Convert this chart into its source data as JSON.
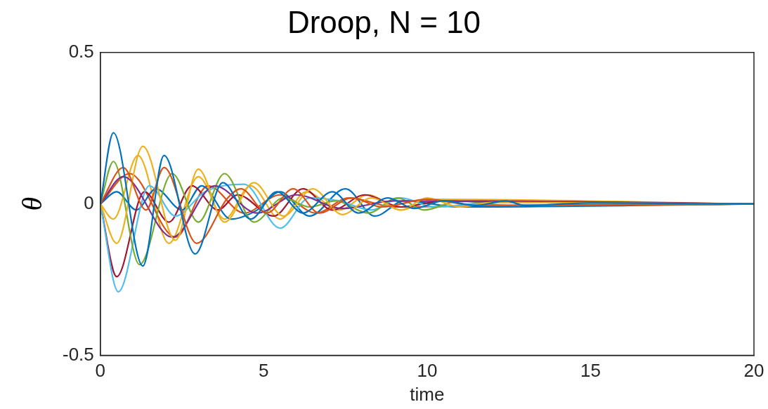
{
  "chart_data": {
    "type": "line",
    "title": "Droop, N = 10",
    "xlabel": "time",
    "ylabel": "θ",
    "xlim": [
      0,
      20
    ],
    "xticks": [
      0,
      5,
      10,
      15,
      20
    ],
    "ylim": [
      -0.5,
      0.5
    ],
    "yticks": [
      -0.5,
      0,
      0.5
    ],
    "grid": false,
    "legend": false,
    "marker": "none",
    "line_style": "solid",
    "series": [
      {
        "color": "#0072bd",
        "x": [
          0,
          0.4,
          1.3,
          1.95,
          2.9,
          3.75,
          4.6,
          5.4,
          6.2,
          7.1,
          7.9,
          8.8,
          9.6,
          10.5,
          11.5,
          12.4,
          13,
          15,
          20
        ],
        "values": [
          0,
          0.235,
          -0.205,
          0.16,
          -0.165,
          0.07,
          -0.05,
          0.04,
          -0.03,
          0.04,
          -0.03,
          0.02,
          -0.015,
          0.01,
          -0.005,
          0.01,
          -0.005,
          0.003,
          0
        ]
      },
      {
        "color": "#d95319",
        "x": [
          0,
          0.7,
          1.4,
          1.95,
          2.95,
          3.9,
          4.3,
          5.1,
          5.9,
          6.7,
          7.7,
          8.6,
          10,
          11.5,
          20
        ],
        "values": [
          0,
          0.12,
          -0.02,
          0.12,
          -0.13,
          0.02,
          0.05,
          -0.03,
          0.05,
          -0.03,
          0.02,
          -0.01,
          0.015,
          -0.005,
          0
        ]
      },
      {
        "color": "#edb120",
        "x": [
          0,
          0.5,
          1.3,
          2.3,
          3.0,
          3.8,
          4.7,
          5.6,
          6.5,
          7.4,
          8.3,
          9.2,
          10,
          11,
          12,
          20
        ],
        "values": [
          0,
          -0.13,
          0.19,
          -0.12,
          0.115,
          -0.06,
          0.07,
          -0.04,
          0.05,
          -0.035,
          0.02,
          -0.02,
          0.02,
          -0.01,
          0.005,
          0
        ]
      },
      {
        "color": "#7e2f8e",
        "x": [
          0,
          0.7,
          2.2,
          3.5,
          4.8,
          6,
          7.4,
          9,
          20
        ],
        "values": [
          0,
          0.09,
          -0.11,
          0.06,
          -0.03,
          0.03,
          -0.015,
          0.01,
          0
        ]
      },
      {
        "color": "#77ac30",
        "x": [
          0,
          0.4,
          1.2,
          2.2,
          3.0,
          3.8,
          4.7,
          5.6,
          6.4,
          7.2,
          8.2,
          9.1,
          9.9,
          11,
          12.5,
          20
        ],
        "values": [
          0,
          0.14,
          -0.2,
          0.1,
          -0.06,
          0.1,
          -0.06,
          0.02,
          -0.01,
          0.01,
          -0.03,
          0.02,
          -0.02,
          0.01,
          -0.005,
          0
        ]
      },
      {
        "color": "#4dbeee",
        "x": [
          0,
          0.55,
          1.5,
          2.3,
          3.2,
          4.4,
          5.5,
          6.4,
          7.3,
          8.3,
          9.2,
          10.2,
          12,
          20
        ],
        "values": [
          0,
          -0.29,
          0.06,
          -0.04,
          0.04,
          0.065,
          -0.08,
          0.02,
          0.01,
          -0.02,
          0.02,
          -0.01,
          0.005,
          0
        ]
      },
      {
        "color": "#a2142f",
        "x": [
          0,
          0.5,
          1.35,
          2.1,
          2.8,
          3.6,
          4.2,
          5.3,
          6.2,
          7.1,
          8.1,
          9.2,
          10.5,
          20
        ],
        "values": [
          0,
          -0.24,
          0.04,
          -0.06,
          0.06,
          -0.02,
          0.03,
          -0.04,
          0.05,
          -0.02,
          0.03,
          -0.01,
          0.01,
          0
        ]
      },
      {
        "color": "#0072bd",
        "x": [
          0,
          0.5,
          1.1,
          1.7,
          2.5,
          3.1,
          4,
          4.8,
          5.5,
          6.4,
          7.5,
          8.4,
          9.3,
          11,
          20
        ],
        "values": [
          0,
          0.04,
          -0.02,
          0.05,
          -0.02,
          0.06,
          -0.05,
          -0.02,
          0.04,
          -0.04,
          0.05,
          -0.04,
          0.01,
          -0.01,
          0
        ]
      },
      {
        "color": "#d95319",
        "x": [
          0,
          0.9,
          2.3,
          3.3,
          4.4,
          5.5,
          6.6,
          7.6,
          9,
          20
        ],
        "values": [
          0,
          0.1,
          -0.11,
          0.06,
          -0.03,
          0.03,
          -0.03,
          0.02,
          -0.01,
          0
        ]
      },
      {
        "color": "#edb120",
        "x": [
          0,
          0.4,
          1.15,
          2.1,
          3.0,
          3.8,
          4.6,
          5.5,
          6.3,
          7.3,
          8.2,
          9.2,
          10.2,
          20
        ],
        "values": [
          0,
          -0.05,
          0.16,
          -0.13,
          0.09,
          -0.05,
          0.06,
          -0.05,
          0.04,
          -0.02,
          0.03,
          -0.02,
          0.015,
          0
        ]
      }
    ]
  }
}
